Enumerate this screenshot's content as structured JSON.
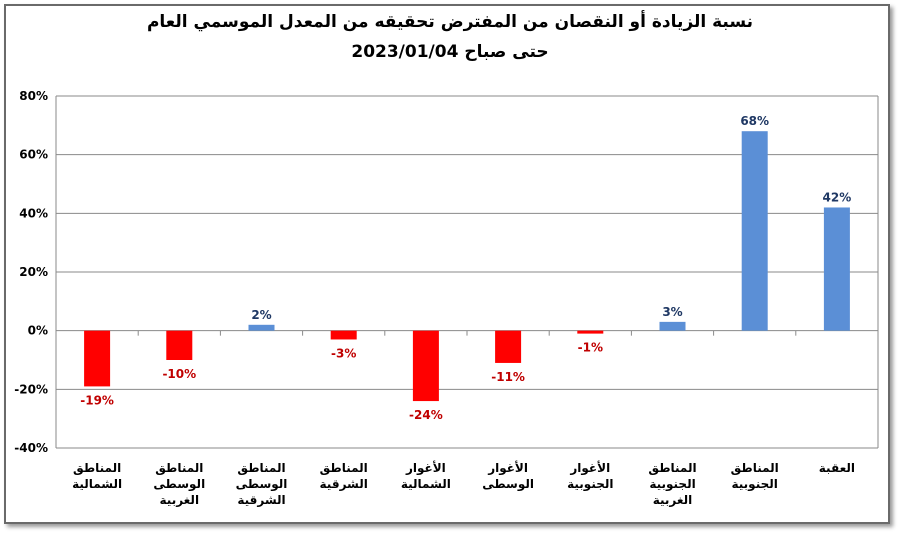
{
  "chart_data": {
    "type": "bar",
    "title": "نسبة الزيادة أو النقصان من المفترض تحقيقه من المعدل الموسمي العام",
    "subtitle": "حتى صباح 2023/01/04",
    "categories": [
      [
        "المناطق",
        "الشمالية"
      ],
      [
        "المناطق",
        "الوسطى",
        "الغربية"
      ],
      [
        "المناطق",
        "الوسطى",
        "الشرقية"
      ],
      [
        "المناطق",
        "الشرقية"
      ],
      [
        "الأغوار",
        "الشمالية"
      ],
      [
        "الأغوار",
        "الوسطى"
      ],
      [
        "الأغوار",
        "الجنوبية"
      ],
      [
        "المناطق",
        "الجنوبية",
        "الغربية"
      ],
      [
        "المناطق",
        "الجنوبية"
      ],
      [
        "العقبة"
      ]
    ],
    "values": [
      -19,
      -10,
      2,
      -3,
      -24,
      -11,
      -1,
      3,
      68,
      42
    ],
    "data_labels": [
      "-19%",
      "-10%",
      "2%",
      "-3%",
      "-24%",
      "-11%",
      "-1%",
      "3%",
      "68%",
      "42%"
    ],
    "ylim": [
      -40,
      80
    ],
    "yticks": [
      80,
      60,
      40,
      20,
      0,
      -20,
      -40
    ],
    "ytick_labels": [
      "80%",
      "60%",
      "40%",
      "20%",
      "0%",
      "-20%",
      "-40%"
    ],
    "grid": true,
    "legend": "none",
    "colors": {
      "positive": "#5b8fd6",
      "negative": "#ff0000",
      "positive_label": "#1f3864",
      "negative_label": "#c00000",
      "grid": "#8a8a8a"
    }
  }
}
